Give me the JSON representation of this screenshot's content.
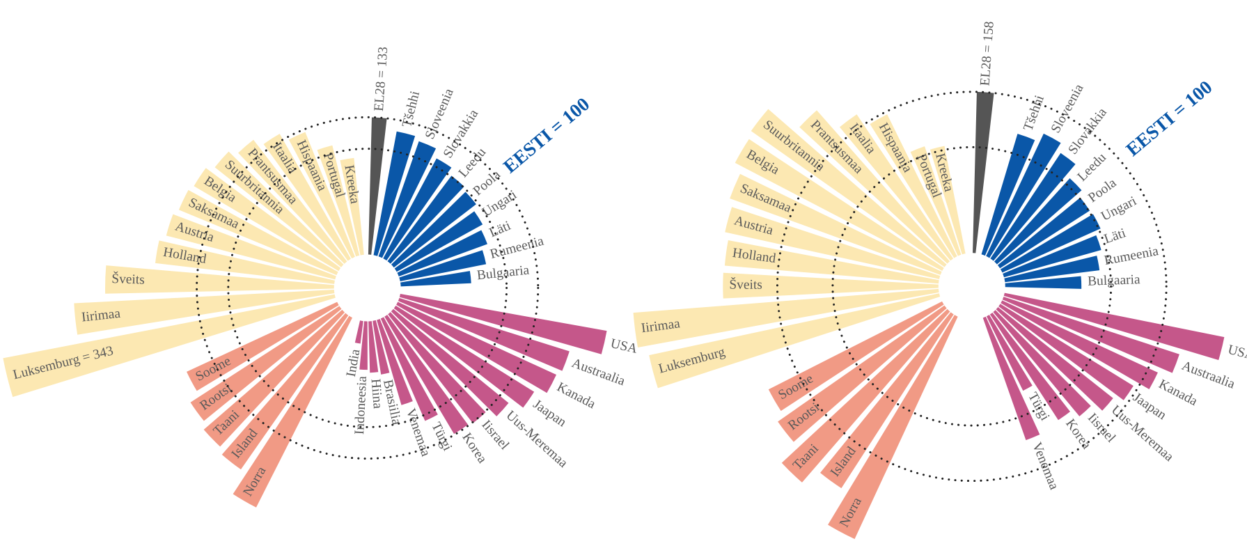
{
  "chart_data": [
    {
      "type": "radial_bar",
      "reference_label": "EESTI = 100",
      "reference_value": 100,
      "groups": [
        {
          "color": "#555555",
          "categories": [
            "EL28 = 133"
          ],
          "values": [
            133
          ]
        },
        {
          "color": "#0a57a8",
          "categories": [
            "Tšehhi",
            "Sloveenia",
            "Slovakkia",
            "Leedu",
            "Poola",
            "Ungari",
            "Läti",
            "Rumeenia",
            "Bulgaaria"
          ],
          "values": [
            121,
            117,
            108,
            101,
            98,
            92,
            88,
            81,
            63
          ]
        },
        {
          "color": "#c5578a",
          "categories": [
            "USA",
            "Austraalia",
            "Kanada",
            "Jaapan",
            "Uus-Meremaa",
            "Iisrael",
            "Korea",
            "Türgi",
            "Venemaa",
            "Brasiilia",
            "Hiina",
            "Indoneesia",
            "India"
          ],
          "values": [
            209,
            176,
            172,
            160,
            145,
            134,
            132,
            106,
            82,
            46,
            43,
            40,
            13
          ]
        },
        {
          "color": "#f19a85",
          "categories": [
            "Norra",
            "Island",
            "Taani",
            "Rootsi",
            "Soome"
          ],
          "values": [
            212,
            186,
            181,
            175,
            163
          ]
        },
        {
          "color": "#fce8b2",
          "categories": [
            "Luksemburg = 343",
            "Iirimaa",
            "Šveits",
            "Holland",
            "Austria",
            "Saksamaa",
            "Belgia",
            "Suurbritannia",
            "Prantsusmaa",
            "Itaalia",
            "Hispaania",
            "Portugal",
            "Kreeka"
          ],
          "values": [
            343,
            262,
            229,
            178,
            172,
            168,
            165,
            158,
            150,
            140,
            130,
            108,
            91
          ]
        }
      ]
    },
    {
      "type": "radial_bar",
      "reference_label": "EESTI = 100",
      "reference_value": 100,
      "groups": [
        {
          "color": "#555555",
          "categories": [
            "EL28 = 158"
          ],
          "values": [
            158
          ]
        },
        {
          "color": "#0a57a8",
          "categories": [
            "Tšehhi",
            "Sloveenia",
            "Slovakkia",
            "Leedu",
            "Poola",
            "Ungari",
            "Läti",
            "Rumeenia",
            "Bulgaaria"
          ],
          "values": [
            121,
            131,
            122,
            107,
            101,
            102,
            95,
            89,
            69
          ]
        },
        {
          "color": "#c5578a",
          "categories": [
            "USA",
            "Austraalia",
            "Kanada",
            "Jaapan",
            "Uus-Meremaa",
            "Iisrael",
            "Korea",
            "Türgi",
            "Venemaa"
          ],
          "values": [
            224,
            183,
            169,
            153,
            143,
            131,
            121,
            76,
            125
          ]
        },
        {
          "color": "#f19a85",
          "categories": [
            "Norra",
            "Island",
            "Taani",
            "Rootsi",
            "Soome"
          ],
          "values": [
            246,
            206,
            226,
            202,
            193
          ]
        },
        {
          "color": "#fce8b2",
          "categories": [
            "Luksemburg",
            "Iirimaa",
            "Šveits",
            "Holland",
            "Austria",
            "Saksamaa",
            "Belgia",
            "Suurbritannia",
            "Prantsusmaa",
            "Itaalia",
            "Hispaania",
            "Portugal",
            "Kreeka"
          ],
          "values": [
            300,
            310,
            215,
            214,
            219,
            224,
            234,
            237,
            200,
            171,
            155,
            109,
            104
          ]
        }
      ]
    }
  ]
}
